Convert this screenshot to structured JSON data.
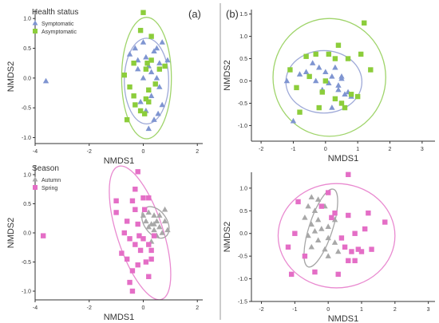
{
  "panel_labels": {
    "a": "(a)",
    "b": "(b)"
  },
  "colors": {
    "symptomatic": "#7f95d1",
    "asymptomatic": "#8ccd3b",
    "autumn": "#a8a8a8",
    "spring": "#e46ec6",
    "ellipse_symptomatic": "#9ea9d8",
    "ellipse_asymptomatic": "#9fd46a",
    "ellipse_autumn": "#a6a6a6",
    "ellipse_spring": "#e98ad0",
    "axis": "#333333",
    "divider": "#9a9a9a"
  },
  "chart_data": [
    {
      "id": "a-top",
      "type": "scatter",
      "xlabel": "NMDS1",
      "ylabel": "NMDS2",
      "xlim": [
        -4,
        2.2
      ],
      "ylim": [
        -1.1,
        1.15
      ],
      "xticks": [
        -4,
        -2,
        0,
        2
      ],
      "yticks": [
        -1.0,
        -0.5,
        0.0,
        0.5,
        1.0
      ],
      "tick_decimals": 1,
      "legend": {
        "title": "Health status",
        "position": "top-left"
      },
      "series": [
        {
          "name": "Symptomatic",
          "shape": "triangle",
          "color_key": "symptomatic",
          "points": [
            [
              -3.6,
              -0.05
            ],
            [
              -0.5,
              0.4
            ],
            [
              -0.3,
              0.5
            ],
            [
              -0.2,
              0.3
            ],
            [
              0.0,
              0.6
            ],
            [
              0.1,
              0.35
            ],
            [
              0.2,
              0.2
            ],
            [
              0.4,
              0.45
            ],
            [
              0.5,
              0.5
            ],
            [
              0.6,
              0.25
            ],
            [
              0.7,
              0.6
            ],
            [
              0.3,
              0.1
            ],
            [
              0.0,
              0.0
            ],
            [
              -0.2,
              0.15
            ],
            [
              0.5,
              0.0
            ],
            [
              0.6,
              -0.15
            ],
            [
              0.3,
              -0.3
            ],
            [
              0.1,
              -0.55
            ],
            [
              0.4,
              -0.7
            ],
            [
              0.7,
              -0.45
            ],
            [
              0.2,
              -0.85
            ],
            [
              -0.1,
              -0.4
            ],
            [
              0.9,
              0.3
            ],
            [
              0.55,
              -0.6
            ]
          ]
        },
        {
          "name": "Asymptomatic",
          "shape": "square",
          "color_key": "asymptomatic",
          "points": [
            [
              0.0,
              1.1
            ],
            [
              -0.7,
              0.05
            ],
            [
              -0.5,
              -0.15
            ],
            [
              -0.35,
              0.25
            ],
            [
              0.1,
              0.15
            ],
            [
              0.15,
              0.25
            ],
            [
              0.3,
              0.3
            ],
            [
              0.6,
              0.15
            ],
            [
              0.8,
              0.2
            ],
            [
              0.2,
              -0.2
            ],
            [
              0.1,
              -0.35
            ],
            [
              -0.1,
              -0.55
            ],
            [
              0.2,
              -0.4
            ],
            [
              -0.3,
              -0.45
            ],
            [
              -0.6,
              -0.7
            ],
            [
              0.3,
              0.7
            ],
            [
              -0.1,
              0.8
            ],
            [
              0.45,
              -0.1
            ],
            [
              -0.35,
              -0.3
            ],
            [
              0.05,
              -0.6
            ]
          ]
        }
      ],
      "ellipses": [
        {
          "color_key": "ellipse_symptomatic",
          "cx": 0.12,
          "cy": -0.05,
          "rx": 0.82,
          "ry": 0.72,
          "angle": 0
        },
        {
          "color_key": "ellipse_asymptomatic",
          "cx": 0.12,
          "cy": 0.0,
          "rx": 0.92,
          "ry": 1.02,
          "angle": 0
        }
      ]
    },
    {
      "id": "b-top",
      "type": "scatter",
      "xlabel": "NMDS1",
      "ylabel": "NMDS2",
      "xlim": [
        -2.3,
        3.4
      ],
      "ylim": [
        -1.35,
        1.6
      ],
      "xticks": [
        -2,
        -1,
        0,
        1,
        2,
        3
      ],
      "yticks": [
        -1.0,
        -0.5,
        0.0,
        0.5,
        1.0,
        1.5
      ],
      "tick_decimals": 1,
      "series": [
        {
          "name": "Symptomatic",
          "shape": "triangle",
          "color_key": "symptomatic",
          "points": [
            [
              -1.2,
              0.0
            ],
            [
              -0.8,
              0.15
            ],
            [
              -0.6,
              0.2
            ],
            [
              -0.4,
              0.4
            ],
            [
              -0.2,
              0.3
            ],
            [
              0.0,
              0.2
            ],
            [
              0.2,
              0.1
            ],
            [
              0.1,
              -0.05
            ],
            [
              0.3,
              0.3
            ],
            [
              0.5,
              0.1
            ],
            [
              0.4,
              -0.2
            ],
            [
              0.6,
              -0.3
            ],
            [
              0.7,
              -0.25
            ],
            [
              0.8,
              -0.35
            ],
            [
              0.2,
              -0.6
            ],
            [
              -0.1,
              -0.2
            ],
            [
              -0.3,
              0.0
            ],
            [
              0.4,
              -0.1
            ],
            [
              -1.0,
              -0.9
            ],
            [
              0.5,
              0.05
            ]
          ]
        },
        {
          "name": "Asymptomatic",
          "shape": "square",
          "color_key": "asymptomatic",
          "points": [
            [
              1.2,
              1.3
            ],
            [
              0.4,
              0.8
            ],
            [
              0.7,
              0.5
            ],
            [
              1.1,
              0.6
            ],
            [
              0.1,
              0.6
            ],
            [
              -0.6,
              0.55
            ],
            [
              -0.3,
              0.6
            ],
            [
              0.3,
              0.5
            ],
            [
              -1.1,
              0.25
            ],
            [
              -0.5,
              0.1
            ],
            [
              0.0,
              0.0
            ],
            [
              -0.9,
              -0.15
            ],
            [
              0.3,
              -0.4
            ],
            [
              0.5,
              -0.5
            ],
            [
              0.8,
              -0.3
            ],
            [
              1.0,
              -0.35
            ],
            [
              1.4,
              0.25
            ],
            [
              -0.2,
              -0.6
            ],
            [
              -0.8,
              -0.7
            ],
            [
              -0.1,
              -0.25
            ],
            [
              0.6,
              -0.6
            ]
          ]
        }
      ],
      "ellipses": [
        {
          "color_key": "ellipse_symptomatic",
          "cx": -0.05,
          "cy": -0.02,
          "rx": 1.18,
          "ry": 0.7,
          "angle": 0
        },
        {
          "color_key": "ellipse_asymptomatic",
          "cx": 0.12,
          "cy": 0.08,
          "rx": 1.75,
          "ry": 1.32,
          "angle": 0
        }
      ]
    },
    {
      "id": "a-bottom",
      "type": "scatter",
      "xlabel": "NMDS1",
      "ylabel": "NMDS2",
      "xlim": [
        -4,
        2.2
      ],
      "ylim": [
        -1.15,
        1.15
      ],
      "xticks": [
        -4,
        -2,
        0,
        2
      ],
      "yticks": [
        -1.0,
        -0.5,
        0.0,
        0.5,
        1.0
      ],
      "tick_decimals": 1,
      "legend": {
        "title": "Season",
        "position": "top-left"
      },
      "series": [
        {
          "name": "Autumn",
          "shape": "triangle",
          "color_key": "autumn",
          "points": [
            [
              0.8,
              0.4
            ],
            [
              0.6,
              0.3
            ],
            [
              0.4,
              0.3
            ],
            [
              0.5,
              0.2
            ],
            [
              0.3,
              0.15
            ],
            [
              0.2,
              0.1
            ],
            [
              0.4,
              0.05
            ],
            [
              0.6,
              0.1
            ],
            [
              0.7,
              0.0
            ],
            [
              0.8,
              0.2
            ],
            [
              0.5,
              -0.05
            ],
            [
              0.3,
              -0.15
            ],
            [
              0.1,
              0.2
            ],
            [
              0.0,
              0.3
            ],
            [
              0.2,
              0.35
            ],
            [
              0.4,
              0.15
            ],
            [
              0.9,
              0.05
            ]
          ]
        },
        {
          "name": "Spring",
          "shape": "square",
          "color_key": "spring",
          "points": [
            [
              -3.7,
              -0.05
            ],
            [
              -1.0,
              0.35
            ],
            [
              -0.6,
              0.2
            ],
            [
              -0.4,
              0.55
            ],
            [
              -0.3,
              0.4
            ],
            [
              -0.2,
              0.15
            ],
            [
              0.0,
              0.6
            ],
            [
              0.2,
              0.6
            ],
            [
              -0.7,
              0.0
            ],
            [
              -0.5,
              -0.1
            ],
            [
              -0.3,
              -0.2
            ],
            [
              -0.1,
              -0.3
            ],
            [
              0.0,
              -0.1
            ],
            [
              0.2,
              -0.2
            ],
            [
              0.3,
              -0.45
            ],
            [
              0.1,
              -0.5
            ],
            [
              -0.2,
              -0.55
            ],
            [
              -0.4,
              -0.65
            ],
            [
              -0.5,
              -0.85
            ],
            [
              -0.4,
              -1.0
            ],
            [
              0.2,
              -0.75
            ],
            [
              0.3,
              -0.3
            ],
            [
              -0.2,
              1.05
            ],
            [
              -0.3,
              0.75
            ],
            [
              -0.8,
              -0.35
            ],
            [
              -1.0,
              0.55
            ],
            [
              -0.6,
              -0.45
            ],
            [
              0.05,
              0.4
            ],
            [
              0.4,
              -0.05
            ],
            [
              -0.15,
              -0.05
            ]
          ]
        }
      ],
      "ellipses": [
        {
          "color_key": "ellipse_spring",
          "cx": -0.12,
          "cy": 0.0,
          "rx": 0.85,
          "ry": 1.2,
          "angle": -18
        },
        {
          "color_key": "ellipse_autumn",
          "cx": 0.45,
          "cy": 0.18,
          "rx": 0.42,
          "ry": 0.3,
          "angle": -35
        }
      ]
    },
    {
      "id": "b-bottom",
      "type": "scatter",
      "xlabel": "NMDS1",
      "ylabel": "NMDS2",
      "xlim": [
        -2.3,
        3.2
      ],
      "ylim": [
        -1.5,
        1.35
      ],
      "xticks": [
        -2,
        -1,
        0,
        1,
        2,
        3
      ],
      "yticks": [
        -1.5,
        -1.0,
        -0.5,
        0.0,
        0.5,
        1.0
      ],
      "tick_decimals": 1,
      "series": [
        {
          "name": "Autumn",
          "shape": "triangle",
          "color_key": "autumn",
          "points": [
            [
              -0.5,
              0.8
            ],
            [
              -0.3,
              0.75
            ],
            [
              -0.6,
              0.6
            ],
            [
              -0.1,
              0.6
            ],
            [
              -0.4,
              0.5
            ],
            [
              -0.7,
              0.35
            ],
            [
              -0.5,
              0.2
            ],
            [
              -0.3,
              0.3
            ],
            [
              -0.2,
              0.1
            ],
            [
              0.0,
              0.15
            ],
            [
              -0.4,
              0.05
            ],
            [
              -0.6,
              -0.05
            ],
            [
              -0.3,
              -0.15
            ],
            [
              0.0,
              -0.1
            ],
            [
              0.2,
              -0.2
            ],
            [
              -0.1,
              -0.35
            ],
            [
              0.3,
              -0.4
            ],
            [
              0.0,
              -0.5
            ],
            [
              0.2,
              0.3
            ],
            [
              -0.5,
              -0.3
            ]
          ]
        },
        {
          "name": "Spring",
          "shape": "square",
          "color_key": "spring",
          "points": [
            [
              0.6,
              1.3
            ],
            [
              -0.9,
              0.7
            ],
            [
              -0.2,
              0.6
            ],
            [
              0.2,
              0.45
            ],
            [
              0.1,
              0.35
            ],
            [
              0.6,
              0.4
            ],
            [
              1.1,
              0.1
            ],
            [
              1.7,
              0.25
            ],
            [
              -1.0,
              0.0
            ],
            [
              0.8,
              0.0
            ],
            [
              0.4,
              -0.1
            ],
            [
              0.5,
              -0.3
            ],
            [
              0.9,
              -0.35
            ],
            [
              0.7,
              -0.4
            ],
            [
              1.0,
              -0.4
            ],
            [
              0.6,
              -0.6
            ],
            [
              0.8,
              -0.6
            ],
            [
              -1.2,
              -0.3
            ],
            [
              -0.7,
              -0.5
            ],
            [
              0.3,
              -0.9
            ],
            [
              -0.4,
              -0.85
            ],
            [
              -1.1,
              -0.9
            ],
            [
              1.3,
              -0.35
            ],
            [
              1.2,
              0.45
            ],
            [
              0.0,
              0.9
            ]
          ]
        }
      ],
      "ellipses": [
        {
          "color_key": "ellipse_spring",
          "cx": 0.25,
          "cy": -0.05,
          "rx": 1.75,
          "ry": 1.15,
          "angle": 0
        },
        {
          "color_key": "ellipse_autumn",
          "cx": -0.22,
          "cy": 0.12,
          "rx": 0.35,
          "ry": 0.9,
          "angle": 18
        }
      ]
    }
  ]
}
